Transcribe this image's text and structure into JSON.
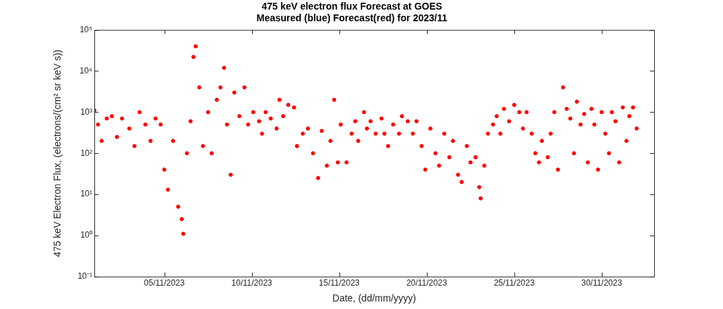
{
  "chart_data": {
    "type": "scatter",
    "title": "475 keV electron flux Forecast at GOES",
    "subtitle": "Measured (blue) Forecast(red) for 2023/11",
    "xlabel": "Date, (dd/mm/yyyy)",
    "ylabel": "475 keV Electron Flux, (electrons/(cm² sr keV s))",
    "log": "y",
    "grid": false,
    "legend": false,
    "marker": "circle",
    "color": "#ff0000",
    "xlim": [
      "2023-11-01",
      "2023-12-03"
    ],
    "xticks": [
      {
        "value": "2023-11-05",
        "label": "05/11/2023"
      },
      {
        "value": "2023-11-10",
        "label": "10/11/2023"
      },
      {
        "value": "2023-11-15",
        "label": "15/11/2023"
      },
      {
        "value": "2023-11-20",
        "label": "20/11/2023"
      },
      {
        "value": "2023-11-25",
        "label": "25/11/2023"
      },
      {
        "value": "2023-11-30",
        "label": "30/11/2023"
      }
    ],
    "ylim": [
      0.1,
      100000
    ],
    "yticks": [
      {
        "value": 0.1,
        "label": "10⁻¹"
      },
      {
        "value": 1,
        "label": "10⁰"
      },
      {
        "value": 10,
        "label": "10¹"
      },
      {
        "value": 100,
        "label": "10²"
      },
      {
        "value": 1000,
        "label": "10³"
      },
      {
        "value": 10000,
        "label": "10⁴"
      },
      {
        "value": 100000,
        "label": "10⁵"
      }
    ],
    "x": [
      "2023-11-01T00:00",
      "2023-11-01T05:00",
      "2023-11-01T10:00",
      "2023-11-01T17:00",
      "2023-11-02T00:00",
      "2023-11-02T07:00",
      "2023-11-02T14:00",
      "2023-11-03T00:00",
      "2023-11-03T07:00",
      "2023-11-03T14:00",
      "2023-11-03T22:00",
      "2023-11-04T05:00",
      "2023-11-04T12:00",
      "2023-11-04T19:00",
      "2023-11-05T00:00",
      "2023-11-05T05:00",
      "2023-11-05T12:00",
      "2023-11-05T19:00",
      "2023-11-06T00:00",
      "2023-11-06T02:00",
      "2023-11-06T07:00",
      "2023-11-06T12:00",
      "2023-11-06T16:00",
      "2023-11-06T19:00",
      "2023-11-07T00:00",
      "2023-11-07T05:00",
      "2023-11-07T12:00",
      "2023-11-07T17:00",
      "2023-11-08T00:00",
      "2023-11-08T05:00",
      "2023-11-08T10:00",
      "2023-11-08T14:00",
      "2023-11-08T19:00",
      "2023-11-09T00:00",
      "2023-11-09T07:00",
      "2023-11-09T14:00",
      "2023-11-09T19:00",
      "2023-11-10T02:00",
      "2023-11-10T10:00",
      "2023-11-10T14:00",
      "2023-11-10T19:00",
      "2023-11-11T02:00",
      "2023-11-11T10:00",
      "2023-11-11T14:00",
      "2023-11-11T19:00",
      "2023-11-12T02:00",
      "2023-11-12T10:00",
      "2023-11-12T14:00",
      "2023-11-12T22:00",
      "2023-11-13T05:00",
      "2023-11-13T12:00",
      "2023-11-13T19:00",
      "2023-11-14T00:00",
      "2023-11-14T07:00",
      "2023-11-14T12:00",
      "2023-11-14T17:00",
      "2023-11-14T22:00",
      "2023-11-15T02:00",
      "2023-11-15T10:00",
      "2023-11-15T17:00",
      "2023-11-15T22:00",
      "2023-11-16T02:00",
      "2023-11-16T10:00",
      "2023-11-16T14:00",
      "2023-11-16T19:00",
      "2023-11-17T02:00",
      "2023-11-17T10:00",
      "2023-11-17T14:00",
      "2023-11-17T19:00",
      "2023-11-18T02:00",
      "2023-11-18T10:00",
      "2023-11-18T14:00",
      "2023-11-18T22:00",
      "2023-11-19T05:00",
      "2023-11-19T10:00",
      "2023-11-19T17:00",
      "2023-11-19T22:00",
      "2023-11-20T05:00",
      "2023-11-20T12:00",
      "2023-11-20T17:00",
      "2023-11-21T00:00",
      "2023-11-21T07:00",
      "2023-11-21T12:00",
      "2023-11-21T19:00",
      "2023-11-22T00:00",
      "2023-11-22T07:00",
      "2023-11-22T12:00",
      "2023-11-22T19:00",
      "2023-11-23T00:00",
      "2023-11-23T02:00",
      "2023-11-23T07:00",
      "2023-11-23T12:00",
      "2023-11-23T19:00",
      "2023-11-24T00:00",
      "2023-11-24T05:00",
      "2023-11-24T10:00",
      "2023-11-24T17:00",
      "2023-11-25T00:00",
      "2023-11-25T07:00",
      "2023-11-25T12:00",
      "2023-11-25T17:00",
      "2023-11-26T00:00",
      "2023-11-26T05:00",
      "2023-11-26T10:00",
      "2023-11-26T14:00",
      "2023-11-26T22:00",
      "2023-11-27T02:00",
      "2023-11-27T07:00",
      "2023-11-27T12:00",
      "2023-11-27T19:00",
      "2023-11-28T00:00",
      "2023-11-28T05:00",
      "2023-11-28T10:00",
      "2023-11-28T14:00",
      "2023-11-28T19:00",
      "2023-11-29T00:00",
      "2023-11-29T05:00",
      "2023-11-29T10:00",
      "2023-11-29T14:00",
      "2023-11-29T19:00",
      "2023-11-30T00:00",
      "2023-11-30T05:00",
      "2023-11-30T10:00",
      "2023-11-30T14:00",
      "2023-11-30T19:00",
      "2023-12-01T00:00",
      "2023-12-01T05:00",
      "2023-12-01T10:00",
      "2023-12-01T14:00",
      "2023-12-01T19:00",
      "2023-12-02T00:00"
    ],
    "values": [
      1100,
      500,
      200,
      700,
      800,
      250,
      700,
      400,
      150,
      1000,
      500,
      200,
      700,
      500,
      40,
      13,
      200,
      5,
      2.5,
      1.1,
      100,
      600,
      22000,
      40000,
      4000,
      150,
      1000,
      100,
      2000,
      4000,
      12000,
      500,
      30,
      3000,
      800,
      4000,
      500,
      1000,
      600,
      300,
      1000,
      700,
      400,
      2000,
      800,
      1500,
      1300,
      150,
      300,
      400,
      100,
      25,
      350,
      50,
      200,
      2000,
      60,
      500,
      60,
      300,
      600,
      200,
      1000,
      400,
      600,
      300,
      700,
      300,
      150,
      500,
      300,
      800,
      600,
      300,
      600,
      150,
      40,
      400,
      100,
      50,
      300,
      80,
      200,
      30,
      20,
      150,
      60,
      80,
      15,
      8,
      50,
      300,
      500,
      800,
      300,
      1200,
      600,
      1500,
      1000,
      400,
      1000,
      300,
      100,
      60,
      200,
      80,
      300,
      1000,
      40,
      4000,
      1200,
      700,
      100,
      1800,
      500,
      900,
      60,
      1200,
      500,
      40,
      1000,
      300,
      100,
      1000,
      600,
      60,
      1300,
      200,
      800,
      1300,
      400
    ]
  }
}
